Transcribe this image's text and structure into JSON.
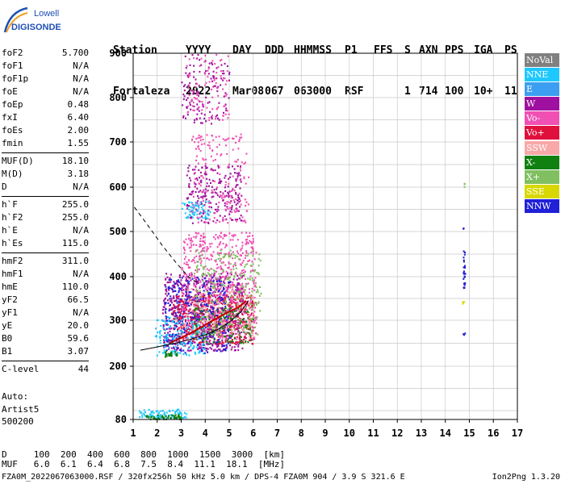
{
  "logo": {
    "line1": "Lowell",
    "line2": "DIGISONDE"
  },
  "header": {
    "labels": [
      "Station",
      "YYYY",
      "DAY",
      "DDD",
      "HHMMSS",
      "P1",
      "FFS",
      "S",
      "AXN",
      "PPS",
      "IGA",
      "PS"
    ],
    "values": [
      "Fortaleza",
      "2022",
      "Mar08",
      "067",
      "063000",
      "RSF",
      "",
      "1",
      "714",
      "100",
      "10+",
      "11"
    ]
  },
  "params_groups": [
    [
      [
        "foF2",
        "5.700"
      ],
      [
        "foF1",
        "N/A"
      ],
      [
        "foF1p",
        "N/A"
      ],
      [
        "foE",
        "N/A"
      ],
      [
        "foEp",
        "0.48"
      ],
      [
        "fxI",
        "6.40"
      ],
      [
        "foEs",
        "2.00"
      ],
      [
        "fmin",
        "1.55"
      ]
    ],
    [
      [
        "MUF(D)",
        "18.10"
      ],
      [
        "M(D)",
        "3.18"
      ],
      [
        "D",
        "N/A"
      ]
    ],
    [
      [
        "h`F",
        "255.0"
      ],
      [
        "h`F2",
        "255.0"
      ],
      [
        "h`E",
        "N/A"
      ],
      [
        "h`Es",
        "115.0"
      ]
    ],
    [
      [
        "hmF2",
        "311.0"
      ],
      [
        "hmF1",
        "N/A"
      ],
      [
        "hmE",
        "110.0"
      ],
      [
        "yF2",
        "66.5"
      ],
      [
        "yF1",
        "N/A"
      ],
      [
        "yE",
        "20.0"
      ],
      [
        "B0",
        "59.6"
      ],
      [
        "B1",
        "3.07"
      ]
    ],
    [
      [
        "C-level",
        "44"
      ]
    ]
  ],
  "auto": [
    "Auto:",
    "Artist5",
    "500200"
  ],
  "legend": [
    {
      "label": "NoVal",
      "color": "#808080"
    },
    {
      "label": "NNE",
      "color": "#1ec8ff"
    },
    {
      "label": "E",
      "color": "#3c9ef0"
    },
    {
      "label": "W",
      "color": "#a010a0"
    },
    {
      "label": "Vo-",
      "color": "#f050b4"
    },
    {
      "label": "Vo+",
      "color": "#e0103c"
    },
    {
      "label": "SSW",
      "color": "#f8a8a8"
    },
    {
      "label": "X-",
      "color": "#108010"
    },
    {
      "label": "X+",
      "color": "#80c060"
    },
    {
      "label": "SSE",
      "color": "#d8d800"
    },
    {
      "label": "NNW",
      "color": "#2020d8"
    }
  ],
  "chart_data": {
    "type": "scatter",
    "xlim": [
      1,
      17
    ],
    "ylim": [
      80,
      900
    ],
    "x_ticks": [
      1,
      2,
      3,
      4,
      5,
      6,
      7,
      8,
      9,
      10,
      11,
      12,
      13,
      14,
      15,
      16,
      17
    ],
    "y_ticks": [
      80,
      200,
      300,
      400,
      500,
      600,
      700,
      800,
      900
    ],
    "grid": true,
    "clusters": [
      {
        "series": "W",
        "x": [
          2.2,
          5.6
        ],
        "y": [
          235,
          410
        ],
        "n": 700
      },
      {
        "series": "Vo+",
        "x": [
          2.6,
          6.0
        ],
        "y": [
          250,
          360
        ],
        "n": 500
      },
      {
        "series": "Vo-",
        "x": [
          3.0,
          6.1
        ],
        "y": [
          260,
          500
        ],
        "n": 600
      },
      {
        "series": "NNW",
        "x": [
          2.3,
          5.0
        ],
        "y": [
          230,
          400
        ],
        "n": 300
      },
      {
        "series": "NNE",
        "x": [
          1.9,
          4.0
        ],
        "y": [
          225,
          310
        ],
        "n": 150
      },
      {
        "series": "X+",
        "x": [
          3.5,
          6.3
        ],
        "y": [
          270,
          460
        ],
        "n": 250
      },
      {
        "series": "X-",
        "x": [
          3.5,
          6.0
        ],
        "y": [
          250,
          330
        ],
        "n": 120
      },
      {
        "series": "SSW",
        "x": [
          3.0,
          6.0
        ],
        "y": [
          260,
          380
        ],
        "n": 120
      },
      {
        "series": "W",
        "x": [
          3.2,
          5.5
        ],
        "y": [
          520,
          650
        ],
        "n": 220
      },
      {
        "series": "Vo-",
        "x": [
          3.4,
          5.8
        ],
        "y": [
          520,
          720
        ],
        "n": 180
      },
      {
        "series": "NNE",
        "x": [
          3.0,
          4.2
        ],
        "y": [
          530,
          570
        ],
        "n": 60
      },
      {
        "series": "W",
        "x": [
          3.0,
          5.0
        ],
        "y": [
          740,
          900
        ],
        "n": 120
      },
      {
        "series": "Vo-",
        "x": [
          3.2,
          5.0
        ],
        "y": [
          750,
          900
        ],
        "n": 90
      },
      {
        "series": "NNE",
        "x": [
          1.2,
          3.2
        ],
        "y": [
          83,
          105
        ],
        "n": 90
      },
      {
        "series": "X-",
        "x": [
          1.5,
          3.0
        ],
        "y": [
          82,
          92
        ],
        "n": 50
      },
      {
        "series": "X-",
        "x": [
          2.3,
          2.8
        ],
        "y": [
          222,
          235
        ],
        "n": 25
      },
      {
        "series": "NNW",
        "x": [
          14.72,
          14.8
        ],
        "y": [
          370,
          460
        ],
        "n": 30
      },
      {
        "series": "X+",
        "x": [
          14.7,
          14.8
        ],
        "y": [
          600,
          610
        ],
        "n": 3
      },
      {
        "series": "SSE",
        "x": [
          14.7,
          14.8
        ],
        "y": [
          335,
          345
        ],
        "n": 3
      },
      {
        "series": "NNW",
        "x": [
          14.7,
          14.8
        ],
        "y": [
          265,
          275
        ],
        "n": 3
      },
      {
        "series": "NNW",
        "x": [
          14.7,
          14.8
        ],
        "y": [
          505,
          512
        ],
        "n": 2
      }
    ],
    "profile_dashed": [
      [
        1.05,
        555
      ],
      [
        1.6,
        515
      ],
      [
        2.2,
        470
      ],
      [
        2.8,
        430
      ],
      [
        3.3,
        400
      ],
      [
        3.7,
        385
      ]
    ],
    "trace_red": [
      [
        2.5,
        250
      ],
      [
        3,
        262
      ],
      [
        3.5,
        275
      ],
      [
        4,
        290
      ],
      [
        4.5,
        305
      ],
      [
        5,
        320
      ],
      [
        5.4,
        330
      ],
      [
        5.7,
        345
      ]
    ],
    "model_black": [
      [
        1.3,
        235
      ],
      [
        2,
        242
      ],
      [
        3,
        253
      ],
      [
        4,
        268
      ],
      [
        4.6,
        282
      ],
      [
        5.1,
        300
      ],
      [
        5.5,
        320
      ],
      [
        5.8,
        345
      ]
    ]
  },
  "footer": {
    "line1": "D     100  200  400  600  800  1000  1500  3000  [km]",
    "line2": "MUF   6.0  6.1  6.4  6.8  7.5  8.4  11.1  18.1  [MHz]",
    "line3_left": "FZA0M_2022067063000.RSF / 320fx256h 50 kHz 5.0 km / DPS-4 FZA0M 904 / 3.9 S 321.6 E",
    "line3_right": "Ion2Png 1.3.20"
  }
}
